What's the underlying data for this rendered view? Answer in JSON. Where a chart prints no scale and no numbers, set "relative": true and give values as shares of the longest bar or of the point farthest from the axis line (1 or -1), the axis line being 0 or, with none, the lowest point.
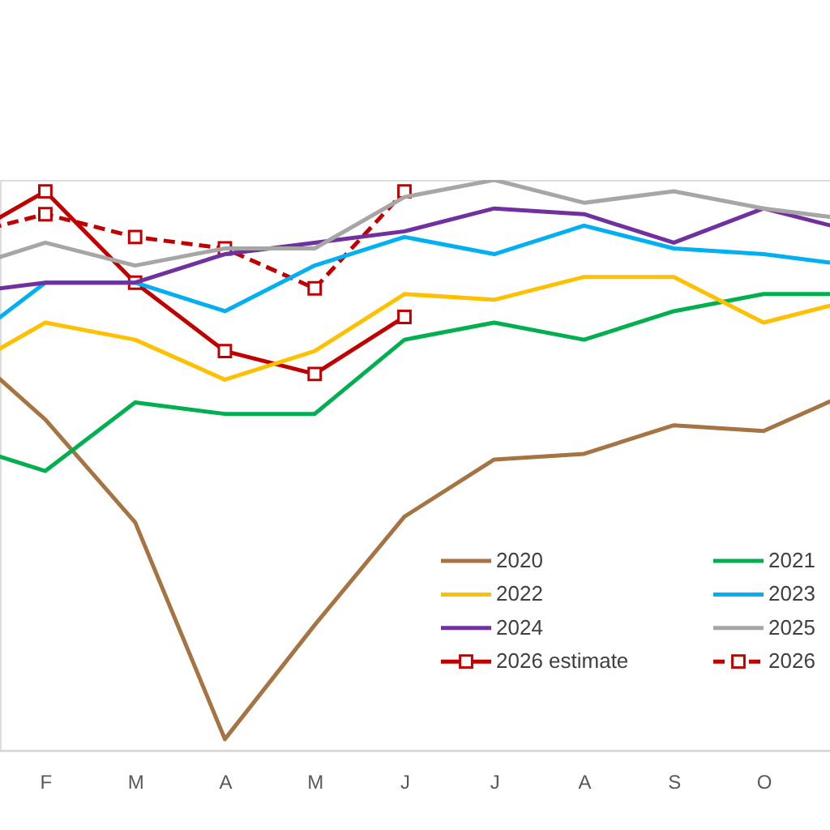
{
  "chart_data": {
    "type": "line",
    "relative": true,
    "categories": [
      null,
      "F",
      "M",
      "A",
      "M",
      "J",
      "J",
      "A",
      "S",
      "O",
      null
    ],
    "legend": "bottom right",
    "series": [
      {
        "name": "2020",
        "color": "#a67443",
        "values": [
          0.72,
          0.58,
          0.4,
          0.02,
          0.22,
          0.41,
          0.51,
          0.52,
          0.57,
          0.56,
          0.63
        ]
      },
      {
        "name": "2021",
        "color": "#00b050",
        "values": [
          0.54,
          0.49,
          0.61,
          0.59,
          0.59,
          0.72,
          0.75,
          0.72,
          0.77,
          0.8,
          0.8
        ]
      },
      {
        "name": "2022",
        "color": "#ffc000",
        "values": [
          0.66,
          0.75,
          0.72,
          0.65,
          0.7,
          0.8,
          0.79,
          0.83,
          0.83,
          0.75,
          0.79
        ]
      },
      {
        "name": "2023",
        "color": "#00b0f0",
        "values": [
          0.7,
          0.82,
          0.82,
          0.77,
          0.85,
          0.9,
          0.87,
          0.92,
          0.88,
          0.87,
          0.85
        ]
      },
      {
        "name": "2024",
        "color": "#7030a0",
        "values": [
          0.8,
          0.82,
          0.82,
          0.87,
          0.89,
          0.91,
          0.95,
          0.94,
          0.89,
          0.95,
          0.91
        ]
      },
      {
        "name": "2025",
        "color": "#a6a6a6",
        "values": [
          0.84,
          0.89,
          0.85,
          0.88,
          0.88,
          0.97,
          1.0,
          0.96,
          0.98,
          0.95,
          0.93
        ]
      },
      {
        "name": "2026 estimate",
        "color": "#c00000",
        "marker": "square",
        "values": [
          0.89,
          0.98,
          0.82,
          0.7,
          0.66,
          0.76,
          null,
          null,
          null,
          null,
          null
        ]
      },
      {
        "name": "2026",
        "color": "#c00000",
        "marker": "square",
        "line_style": "dashed",
        "values": [
          0.9,
          0.94,
          0.9,
          0.88,
          0.81,
          0.98,
          null,
          null,
          null,
          null,
          null
        ]
      }
    ]
  }
}
